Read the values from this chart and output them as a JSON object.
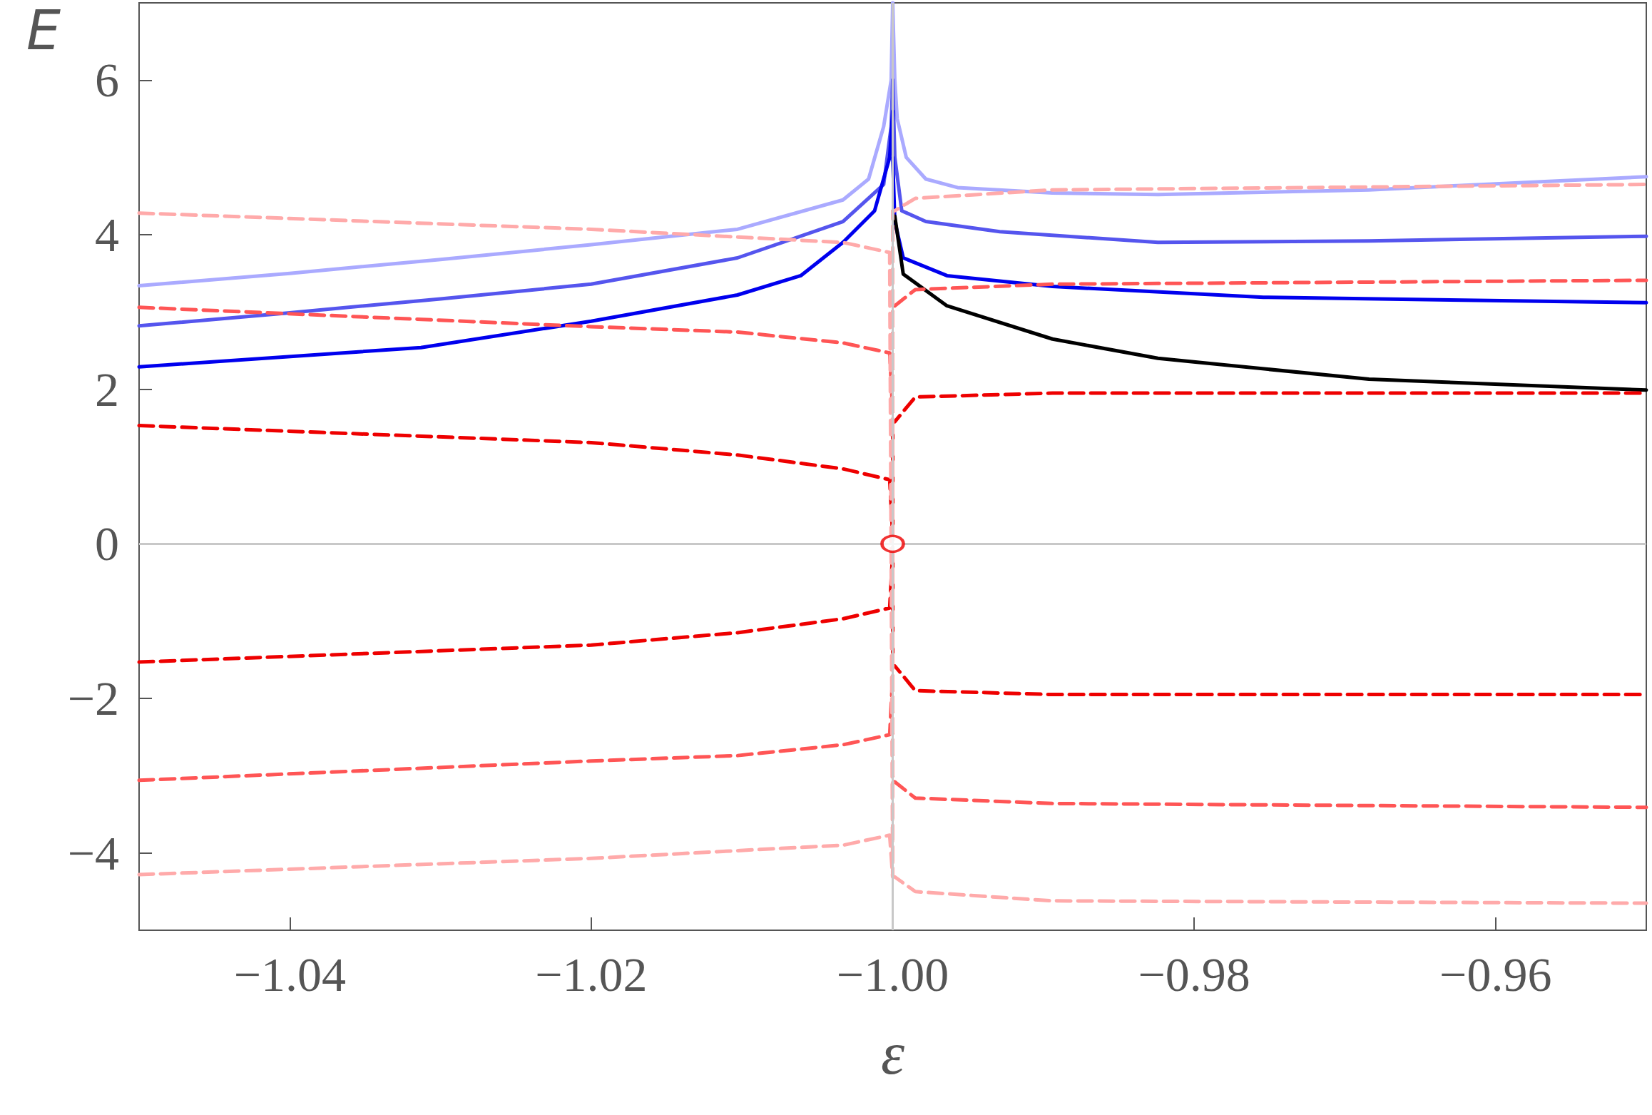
{
  "chart_data": {
    "type": "line",
    "xlabel": "ε",
    "ylabel": "E",
    "xlim": [
      -1.05,
      -0.95
    ],
    "ylim": [
      -5,
      7
    ],
    "xticks": [
      {
        "value": -1.04,
        "label": "−1.04"
      },
      {
        "value": -1.02,
        "label": "−1.02"
      },
      {
        "value": -1.0,
        "label": "−1.00"
      },
      {
        "value": -0.98,
        "label": "−0.98"
      },
      {
        "value": -0.96,
        "label": "−0.96"
      }
    ],
    "yticks": [
      {
        "value": -4,
        "label": "−4"
      },
      {
        "value": -2,
        "label": "−2"
      },
      0,
      2,
      4,
      6
    ],
    "grid": false,
    "ref_lines": [
      {
        "axis": "y",
        "value": 0,
        "color": "#c8c8c8"
      },
      {
        "axis": "x",
        "value": -1.0,
        "color": "#c8c8c8"
      }
    ],
    "series": [
      {
        "color": "#aaaaff",
        "line_style": "solid",
        "x": [
          -1.05,
          -1.04,
          -1.03,
          -1.02,
          -1.0103,
          -1.0033,
          -1.0016,
          -1.0006,
          -1.0001,
          -1.0
        ],
        "values": [
          3.34,
          3.5,
          3.68,
          3.87,
          4.07,
          4.45,
          4.72,
          5.4,
          6.0,
          7
        ]
      },
      {
        "color": "#aaaaff",
        "line_style": "solid",
        "x": [
          -1.0,
          -0.99986,
          -0.9997,
          -0.9991,
          -0.9978,
          -0.9957,
          -0.9894,
          -0.9824,
          -0.9684,
          -0.95
        ],
        "values": [
          7,
          6.0,
          5.5,
          5.0,
          4.72,
          4.61,
          4.54,
          4.52,
          4.58,
          4.75
        ]
      },
      {
        "color": "#5555ee",
        "line_style": "solid",
        "x": [
          -1.05,
          -1.04,
          -1.03,
          -1.02,
          -1.0103,
          -1.0033,
          -1.0006,
          -1.0001,
          -1.0
        ],
        "values": [
          2.82,
          2.99,
          3.17,
          3.36,
          3.7,
          4.17,
          4.65,
          5.4,
          6.0
        ]
      },
      {
        "color": "#5555ee",
        "line_style": "solid",
        "x": [
          -1.0,
          -0.99986,
          -0.9994,
          -0.9978,
          -0.9929,
          -0.9824,
          -0.9684,
          -0.95
        ],
        "values": [
          6.0,
          5.0,
          4.31,
          4.17,
          4.04,
          3.9,
          3.92,
          3.98
        ]
      },
      {
        "color": "#0000ee",
        "line_style": "solid",
        "x": [
          -1.05,
          -1.0313,
          -1.02,
          -1.0103,
          -1.0061,
          -1.0033,
          -1.0012,
          -1.0002,
          -1.0
        ],
        "values": [
          2.29,
          2.54,
          2.88,
          3.22,
          3.47,
          3.9,
          4.31,
          5.0,
          5.6
        ]
      },
      {
        "color": "#0000ee",
        "line_style": "solid",
        "x": [
          -1.0,
          -0.99986,
          -0.9993,
          -0.9964,
          -0.9894,
          -0.9754,
          -0.95
        ],
        "values": [
          5.0,
          4.17,
          3.7,
          3.47,
          3.33,
          3.19,
          3.12
        ]
      },
      {
        "color": "#000000",
        "line_style": "solid",
        "x": [
          -0.99986,
          -0.9993,
          -0.9964,
          -0.9894,
          -0.9824,
          -0.9684,
          -0.95
        ],
        "values": [
          4.24,
          3.49,
          3.08,
          2.65,
          2.4,
          2.13,
          1.99
        ]
      },
      {
        "color": "#ee0000",
        "line_style": "dashed",
        "x": [
          -1.05,
          -1.02,
          -1.0103,
          -1.0033,
          -1.0002,
          -1.0,
          -1.0,
          -0.99986,
          -0.9985,
          -0.9894,
          -0.95
        ],
        "values": [
          1.53,
          1.31,
          1.15,
          0.97,
          0.83,
          0.1,
          1.58,
          1.58,
          1.9,
          1.95,
          1.95
        ]
      },
      {
        "color": "#ee0000",
        "line_style": "dashed",
        "x": [
          -1.05,
          -1.02,
          -1.0103,
          -1.0033,
          -1.0002,
          -1.0,
          -1.0,
          -0.99986,
          -0.9985,
          -0.9894,
          -0.95
        ],
        "values": [
          -1.53,
          -1.31,
          -1.15,
          -0.97,
          -0.83,
          -0.1,
          -1.58,
          -1.58,
          -1.9,
          -1.95,
          -1.95
        ]
      },
      {
        "color": "#ff5555",
        "line_style": "dashed",
        "x": [
          -1.05,
          -1.02,
          -1.0103,
          -1.0033,
          -1.0002,
          -1.0,
          -1.0,
          -0.99986,
          -0.9985,
          -0.9894,
          -0.95
        ],
        "values": [
          3.06,
          2.81,
          2.74,
          2.6,
          2.47,
          1.7,
          3.08,
          3.08,
          3.29,
          3.36,
          3.41
        ]
      },
      {
        "color": "#ff5555",
        "line_style": "dashed",
        "x": [
          -1.05,
          -1.02,
          -1.0103,
          -1.0033,
          -1.0002,
          -1.0,
          -1.0,
          -0.99986,
          -0.9985,
          -0.9894,
          -0.95
        ],
        "values": [
          -3.06,
          -2.81,
          -2.74,
          -2.6,
          -2.47,
          -1.7,
          -3.08,
          -3.08,
          -3.29,
          -3.36,
          -3.41
        ]
      },
      {
        "color": "#ffaaaa",
        "line_style": "dashed",
        "x": [
          -1.05,
          -1.02,
          -1.0103,
          -1.0033,
          -1.0002,
          -1.0,
          -1.0,
          -0.99986,
          -0.9985,
          -0.9894,
          -0.95
        ],
        "values": [
          4.28,
          4.07,
          3.97,
          3.9,
          3.77,
          -4.3,
          4.31,
          4.31,
          4.47,
          4.58,
          4.65
        ]
      },
      {
        "color": "#ffaaaa",
        "line_style": "dashed",
        "x": [
          -1.05,
          -1.02,
          -1.0103,
          -1.0033,
          -1.0002,
          -1.0,
          -0.99986,
          -0.9985,
          -0.9894,
          -0.95
        ],
        "values": [
          -4.28,
          -4.07,
          -3.97,
          -3.9,
          -3.77,
          -4.31,
          -4.31,
          -4.5,
          -4.62,
          -4.65
        ]
      },
      {
        "type": "scatter",
        "color": "#ee0000",
        "marker": "circle",
        "x": [
          -1.0
        ],
        "values": [
          0
        ]
      }
    ]
  }
}
